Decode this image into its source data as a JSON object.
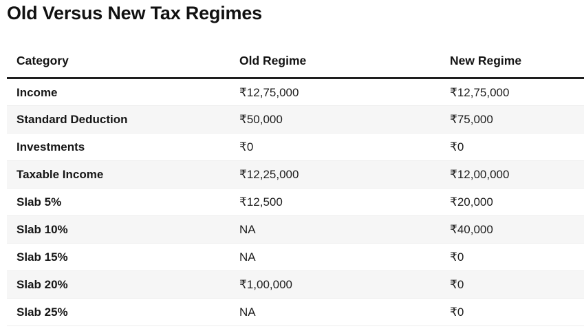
{
  "title": "Old Versus New Tax Regimes",
  "chart_data": {
    "type": "table",
    "title": "Old Versus New Tax Regimes",
    "columns": [
      "Category",
      "Old Regime",
      "New Regime"
    ],
    "rows": [
      [
        "Income",
        "₹12,75,000",
        "₹12,75,000"
      ],
      [
        "Standard Deduction",
        "₹50,000",
        "₹75,000"
      ],
      [
        "Investments",
        "₹0",
        "₹0"
      ],
      [
        "Taxable Income",
        "₹12,25,000",
        "₹12,00,000"
      ],
      [
        "Slab 5%",
        "₹12,500",
        "₹20,000"
      ],
      [
        "Slab 10%",
        "NA",
        "₹40,000"
      ],
      [
        "Slab 15%",
        "NA",
        "₹0"
      ],
      [
        "Slab 20%",
        "₹1,00,000",
        "₹0"
      ],
      [
        "Slab 25%",
        "NA",
        "₹0"
      ]
    ]
  },
  "table": {
    "headers": {
      "category": "Category",
      "old_regime": "Old Regime",
      "new_regime": "New Regime"
    },
    "rows": [
      {
        "category": "Income",
        "old_regime": "₹12,75,000",
        "new_regime": "₹12,75,000"
      },
      {
        "category": "Standard Deduction",
        "old_regime": "₹50,000",
        "new_regime": "₹75,000"
      },
      {
        "category": "Investments",
        "old_regime": "₹0",
        "new_regime": "₹0"
      },
      {
        "category": "Taxable Income",
        "old_regime": "₹12,25,000",
        "new_regime": "₹12,00,000"
      },
      {
        "category": "Slab 5%",
        "old_regime": "₹12,500",
        "new_regime": "₹20,000"
      },
      {
        "category": "Slab 10%",
        "old_regime": "NA",
        "new_regime": "₹40,000"
      },
      {
        "category": "Slab 15%",
        "old_regime": "NA",
        "new_regime": "₹0"
      },
      {
        "category": "Slab 20%",
        "old_regime": "₹1,00,000",
        "new_regime": "₹0"
      },
      {
        "category": "Slab 25%",
        "old_regime": "NA",
        "new_regime": "₹0"
      }
    ]
  },
  "colors": {
    "header_rule": "#1e1e1e",
    "row_stripe": "#f6f6f6",
    "title_text": "#111111"
  }
}
